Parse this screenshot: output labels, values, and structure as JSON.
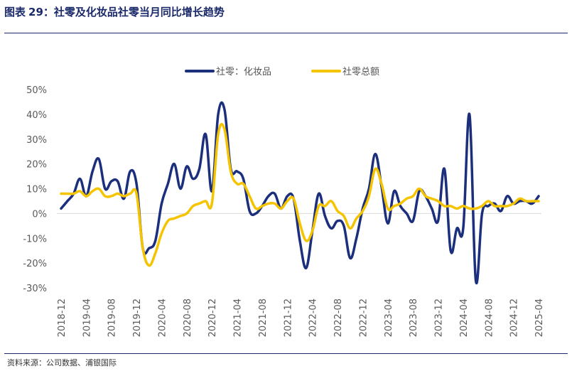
{
  "figure": {
    "label": "图表",
    "number": "29：",
    "title": "社零及化妆品社零当月同比增长趋势",
    "source": "资料来源：公司数据、浦银国际"
  },
  "colors": {
    "cosmetics": "#1b2f7c",
    "total": "#f5c400",
    "axis": "#d9d9d9",
    "title": "#1b2a6b"
  },
  "chart_data": {
    "type": "line",
    "title": "社零及化妆品社零当月同比增长趋势",
    "xlabel": "",
    "ylabel": "",
    "ylim": [
      -30,
      50
    ],
    "yticks": [
      -30,
      -20,
      -10,
      0,
      10,
      20,
      30,
      40,
      50
    ],
    "ytick_labels": [
      "-30%",
      "-20%",
      "-10%",
      "0%",
      "10%",
      "20%",
      "30%",
      "40%",
      "50%"
    ],
    "grid": false,
    "legend_position": "top-center",
    "x_tick_labels": [
      "2018-12",
      "2019-04",
      "2019-08",
      "2019-12",
      "2020-04",
      "2020-08",
      "2020-12",
      "2021-04",
      "2021-08",
      "2021-12",
      "2022-04",
      "2022-08",
      "2022-12",
      "2023-04",
      "2023-08",
      "2023-12",
      "2024-04",
      "2024-08",
      "2024-12",
      "2025-04"
    ],
    "x": [
      "2018-12",
      "2019-01",
      "2019-02",
      "2019-03",
      "2019-04",
      "2019-05",
      "2019-06",
      "2019-07",
      "2019-08",
      "2019-09",
      "2019-10",
      "2019-11",
      "2019-12",
      "2020-01",
      "2020-02",
      "2020-03",
      "2020-04",
      "2020-05",
      "2020-06",
      "2020-07",
      "2020-08",
      "2020-09",
      "2020-10",
      "2020-11",
      "2020-12",
      "2021-01",
      "2021-02",
      "2021-03",
      "2021-04",
      "2021-05",
      "2021-06",
      "2021-07",
      "2021-08",
      "2021-09",
      "2021-10",
      "2021-11",
      "2021-12",
      "2022-01",
      "2022-02",
      "2022-03",
      "2022-04",
      "2022-05",
      "2022-06",
      "2022-07",
      "2022-08",
      "2022-09",
      "2022-10",
      "2022-11",
      "2022-12",
      "2023-01",
      "2023-02",
      "2023-03",
      "2023-04",
      "2023-05",
      "2023-06",
      "2023-07",
      "2023-08",
      "2023-09",
      "2023-10",
      "2023-11",
      "2023-12",
      "2024-01",
      "2024-02",
      "2024-03",
      "2024-04",
      "2024-05",
      "2024-06",
      "2024-07",
      "2024-08",
      "2024-09",
      "2024-10",
      "2024-11",
      "2024-12",
      "2025-01",
      "2025-02",
      "2025-03",
      "2025-04"
    ],
    "series": [
      {
        "name": "社零：化妆品",
        "color": "#1b2f7c",
        "values": [
          2,
          5,
          8,
          14,
          7,
          17,
          22,
          10,
          13,
          13,
          6,
          17,
          12,
          -14,
          -14,
          -11,
          4,
          12,
          20,
          10,
          19,
          14,
          18,
          32,
          9,
          40,
          42,
          18,
          17,
          14,
          1,
          0,
          3,
          7,
          8,
          2,
          7,
          6,
          -11,
          -22,
          -7,
          8,
          -1,
          -6,
          -3,
          -5,
          -18,
          -10,
          2,
          10,
          24,
          11,
          -4,
          9,
          3,
          0,
          -3,
          9,
          7,
          2,
          -3,
          18,
          -15,
          -6,
          -6,
          40,
          -27,
          0,
          3,
          4,
          1,
          7,
          4,
          5,
          5,
          4,
          7
        ],
        "_note_values": "ignored"
      },
      {
        "name": "社零总额",
        "color": "#f5c400",
        "values": [
          8,
          8,
          8,
          9,
          7,
          9,
          10,
          7,
          7,
          8,
          7,
          8,
          8,
          -14,
          -21,
          -16,
          -8,
          -3,
          -2,
          -1,
          0,
          3,
          4,
          5,
          4,
          32,
          34,
          17,
          12,
          12,
          7,
          2,
          3,
          4,
          4,
          2,
          5,
          6,
          -4,
          -11,
          -7,
          3,
          3,
          5,
          1,
          -1,
          -6,
          -2,
          1,
          7,
          18,
          12,
          2,
          3,
          4,
          6,
          7,
          10,
          7,
          6,
          5,
          3,
          3,
          2,
          3,
          2,
          2,
          3,
          5,
          3,
          3,
          3,
          4,
          6,
          5,
          5,
          5
        ]
      }
    ]
  }
}
